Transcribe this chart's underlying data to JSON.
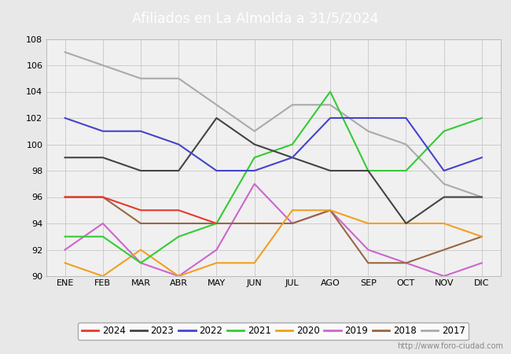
{
  "title": "Afiliados en La Almolda a 31/5/2024",
  "header_color": "#5b9bd5",
  "ylim": [
    90,
    108
  ],
  "yticks": [
    90,
    92,
    94,
    96,
    98,
    100,
    102,
    104,
    106,
    108
  ],
  "months": [
    "ENE",
    "FEB",
    "MAR",
    "ABR",
    "MAY",
    "JUN",
    "JUL",
    "AGO",
    "SEP",
    "OCT",
    "NOV",
    "DIC"
  ],
  "series": {
    "2024": {
      "color": "#e8392b",
      "data": [
        96,
        96,
        95,
        95,
        94,
        null,
        null,
        null,
        null,
        null,
        null,
        null
      ]
    },
    "2023": {
      "color": "#444444",
      "data": [
        99,
        99,
        98,
        98,
        102,
        100,
        99,
        98,
        98,
        94,
        96,
        96
      ]
    },
    "2022": {
      "color": "#4444cc",
      "data": [
        102,
        101,
        101,
        100,
        98,
        98,
        99,
        102,
        102,
        102,
        98,
        99
      ]
    },
    "2021": {
      "color": "#33cc33",
      "data": [
        93,
        93,
        91,
        93,
        94,
        99,
        100,
        104,
        98,
        98,
        101,
        102
      ]
    },
    "2020": {
      "color": "#f0a020",
      "data": [
        91,
        90,
        92,
        90,
        91,
        91,
        95,
        95,
        94,
        94,
        94,
        93
      ]
    },
    "2019": {
      "color": "#cc66cc",
      "data": [
        92,
        94,
        91,
        90,
        92,
        97,
        94,
        95,
        92,
        91,
        90,
        91
      ]
    },
    "2018": {
      "color": "#996644",
      "data": [
        96,
        96,
        94,
        94,
        94,
        94,
        94,
        95,
        91,
        91,
        92,
        93
      ]
    },
    "2017": {
      "color": "#aaaaaa",
      "data": [
        107,
        106,
        105,
        105,
        103,
        101,
        103,
        103,
        101,
        100,
        97,
        96
      ]
    }
  },
  "watermark": "http://www.foro-ciudad.com",
  "background_color": "#e8e8e8",
  "plot_background": "#f0f0f0",
  "grid_color": "#cccccc"
}
